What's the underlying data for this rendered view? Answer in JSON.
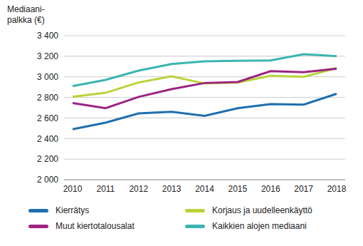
{
  "chart_data": {
    "type": "line",
    "y_label": "Mediaani-\npalkka (€)",
    "categories": [
      "2010",
      "2011",
      "2012",
      "2013",
      "2014",
      "2015",
      "2016",
      "2017",
      "2018"
    ],
    "series": [
      {
        "name": "Kierrätys",
        "color": "#1f6fae",
        "values": [
          2490,
          2555,
          2645,
          2660,
          2620,
          2695,
          2735,
          2730,
          2835
        ]
      },
      {
        "name": "Korjaus ja uudelleenkäyttö",
        "color": "#b8d43a",
        "values": [
          2805,
          2845,
          2945,
          3005,
          2935,
          2945,
          3010,
          3000,
          3085
        ]
      },
      {
        "name": "Muut kiertotalousalat",
        "color": "#9c2480",
        "values": [
          2745,
          2695,
          2805,
          2880,
          2940,
          2950,
          3055,
          3045,
          3080
        ]
      },
      {
        "name": "Kaikkien alojen mediaani",
        "color": "#3bb5b0",
        "values": [
          2910,
          2970,
          3060,
          3125,
          3150,
          3155,
          3160,
          3220,
          3200
        ]
      }
    ],
    "ylim": [
      2000,
      3400
    ],
    "yticks": [
      {
        "value": 2000,
        "label": "2 000"
      },
      {
        "value": 2200,
        "label": "2 200"
      },
      {
        "value": 2400,
        "label": "2 400"
      },
      {
        "value": 2600,
        "label": "2 600"
      },
      {
        "value": 2800,
        "label": "2 800"
      },
      {
        "value": 3000,
        "label": "3 000"
      },
      {
        "value": 3200,
        "label": "3 200"
      },
      {
        "value": 3400,
        "label": "3 400"
      }
    ],
    "grid": true,
    "legend": "bottom"
  }
}
